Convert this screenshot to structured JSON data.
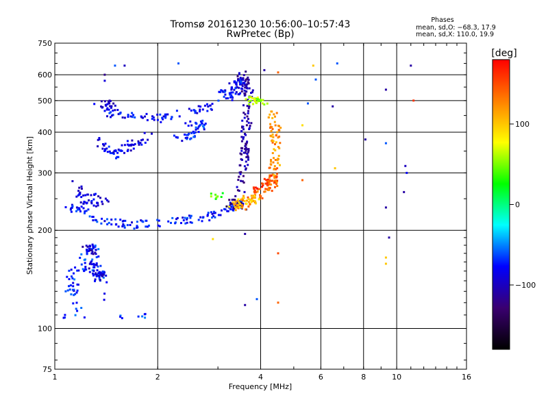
{
  "chart_data": {
    "type": "scatter",
    "title": "Tromsø 20161230 10:56:00–10:57:43",
    "subtitle": "RwPretec (Bp)",
    "xlabel": "Frequency [MHz]",
    "ylabel": "Stationary phase Virtual Height [km]",
    "x_scale": "log",
    "y_scale": "log",
    "xlim": [
      1,
      16
    ],
    "ylim": [
      75,
      750
    ],
    "x_ticks": [
      1,
      2,
      4,
      6,
      8,
      10,
      16
    ],
    "x_tick_labels": [
      "1",
      "2",
      "4",
      "6",
      "8",
      "10",
      "16"
    ],
    "x_grid": [
      1,
      2,
      4,
      6,
      8,
      10,
      16
    ],
    "y_ticks": [
      75,
      100,
      200,
      300,
      400,
      500,
      600,
      750
    ],
    "y_tick_labels": [
      "75",
      "100",
      "200",
      "300",
      "400",
      "500",
      "600",
      "750"
    ],
    "grid": true,
    "phase_stats": {
      "title": "Phases",
      "o_line": "mean, sd,O: −68.3, 17.9",
      "x_line": "mean, sd,X: 110.0, 19.9"
    },
    "colorbar": {
      "label": "[deg]",
      "range": [
        -180,
        180
      ],
      "ticks": [
        100,
        0,
        -100
      ],
      "tick_labels": [
        "100",
        "0",
        "−100"
      ],
      "colormap": [
        "#000000",
        "#3a0070",
        "#0000ff",
        "#00ffff",
        "#00ff00",
        "#ffff00",
        "#ff8000",
        "#ff0000"
      ]
    },
    "clusters": [
      {
        "phase": -70,
        "n": 110,
        "points": [
          [
            1.02,
            110
          ],
          [
            1.2,
            110
          ],
          [
            1.08,
            130
          ],
          [
            1.16,
            130
          ],
          [
            1.1,
            150
          ],
          [
            1.2,
            150
          ],
          [
            1.22,
            170
          ],
          [
            1.3,
            180
          ],
          [
            1.35,
            150
          ],
          [
            1.4,
            140
          ],
          [
            1.28,
            160
          ],
          [
            1.5,
            110
          ],
          [
            1.9,
            110
          ]
        ]
      },
      {
        "phase": -95,
        "n": 40,
        "points": [
          [
            1.25,
            160
          ],
          [
            1.3,
            150
          ],
          [
            1.35,
            140
          ],
          [
            1.4,
            145
          ],
          [
            1.22,
            180
          ],
          [
            1.3,
            170
          ]
        ]
      },
      {
        "phase": -75,
        "n": 140,
        "points": [
          [
            1.1,
            230
          ],
          [
            1.2,
            235
          ],
          [
            1.3,
            215
          ],
          [
            1.5,
            210
          ],
          [
            1.7,
            208
          ],
          [
            2.0,
            210
          ],
          [
            2.4,
            215
          ],
          [
            2.8,
            220
          ],
          [
            3.1,
            228
          ],
          [
            3.3,
            235
          ],
          [
            3.5,
            240
          ]
        ]
      },
      {
        "phase": -90,
        "n": 45,
        "points": [
          [
            1.15,
            280
          ],
          [
            1.2,
            250
          ],
          [
            1.3,
            240
          ],
          [
            1.4,
            245
          ],
          [
            1.25,
            265
          ]
        ]
      },
      {
        "phase": -85,
        "n": 60,
        "points": [
          [
            1.3,
            380
          ],
          [
            1.4,
            360
          ],
          [
            1.5,
            340
          ],
          [
            1.6,
            355
          ],
          [
            1.7,
            370
          ],
          [
            1.9,
            390
          ]
        ]
      },
      {
        "phase": -80,
        "n": 70,
        "points": [
          [
            1.4,
            460
          ],
          [
            1.6,
            450
          ],
          [
            1.8,
            445
          ],
          [
            2.0,
            440
          ],
          [
            2.3,
            450
          ],
          [
            2.6,
            470
          ],
          [
            2.9,
            480
          ]
        ]
      },
      {
        "phase": -95,
        "n": 25,
        "points": [
          [
            1.3,
            500
          ],
          [
            1.4,
            490
          ],
          [
            1.5,
            475
          ]
        ]
      },
      {
        "phase": -75,
        "n": 45,
        "points": [
          [
            2.2,
            375
          ],
          [
            2.5,
            395
          ],
          [
            2.7,
            420
          ],
          [
            2.45,
            430
          ]
        ]
      },
      {
        "phase": -110,
        "n": 130,
        "points": [
          [
            3.5,
            260
          ],
          [
            3.55,
            300
          ],
          [
            3.6,
            340
          ],
          [
            3.6,
            380
          ],
          [
            3.65,
            420
          ],
          [
            3.65,
            470
          ],
          [
            3.7,
            520
          ],
          [
            3.6,
            560
          ],
          [
            3.5,
            600
          ]
        ]
      },
      {
        "phase": -80,
        "n": 60,
        "points": [
          [
            3.0,
            510
          ],
          [
            3.2,
            530
          ],
          [
            3.4,
            560
          ],
          [
            3.5,
            580
          ],
          [
            3.3,
            500
          ]
        ]
      },
      {
        "phase": -130,
        "n": 22,
        "points": [
          [
            3.2,
            240
          ],
          [
            3.4,
            250
          ],
          [
            3.55,
            235
          ],
          [
            3.0,
            228
          ]
        ]
      },
      {
        "phase": 60,
        "n": 30,
        "points": [
          [
            3.7,
            500
          ],
          [
            3.9,
            500
          ],
          [
            4.1,
            495
          ],
          [
            4.0,
            510
          ]
        ]
      },
      {
        "phase": 130,
        "n": 80,
        "points": [
          [
            3.4,
            235
          ],
          [
            3.6,
            240
          ],
          [
            3.8,
            248
          ],
          [
            4.0,
            258
          ],
          [
            4.2,
            270
          ],
          [
            4.35,
            300
          ],
          [
            4.4,
            340
          ],
          [
            4.45,
            380
          ],
          [
            4.45,
            420
          ]
        ]
      },
      {
        "phase": 155,
        "n": 45,
        "points": [
          [
            3.8,
            260
          ],
          [
            4.0,
            270
          ],
          [
            4.2,
            280
          ],
          [
            4.35,
            290
          ],
          [
            4.3,
            265
          ]
        ]
      },
      {
        "phase": 100,
        "n": 35,
        "points": [
          [
            3.3,
            240
          ],
          [
            3.5,
            245
          ],
          [
            3.7,
            250
          ],
          [
            3.9,
            248
          ],
          [
            3.4,
            238
          ]
        ]
      },
      {
        "phase": 120,
        "n": 40,
        "points": [
          [
            4.3,
            260
          ],
          [
            4.4,
            300
          ],
          [
            4.45,
            340
          ],
          [
            4.4,
            400
          ],
          [
            4.35,
            460
          ]
        ]
      },
      {
        "phase": 40,
        "n": 8,
        "points": [
          [
            2.8,
            255
          ],
          [
            3.1,
            248
          ],
          [
            2.9,
            262
          ]
        ]
      }
    ],
    "scatter_points": [
      {
        "x": 1.6,
        "y": 640,
        "phase": -100
      },
      {
        "x": 2.3,
        "y": 650,
        "phase": -60
      },
      {
        "x": 4.1,
        "y": 620,
        "phase": -110
      },
      {
        "x": 4.5,
        "y": 610,
        "phase": 140
      },
      {
        "x": 5.7,
        "y": 640,
        "phase": 100
      },
      {
        "x": 5.8,
        "y": 580,
        "phase": -60
      },
      {
        "x": 6.7,
        "y": 650,
        "phase": -60
      },
      {
        "x": 5.5,
        "y": 490,
        "phase": -60
      },
      {
        "x": 5.3,
        "y": 420,
        "phase": 90
      },
      {
        "x": 6.5,
        "y": 480,
        "phase": -110
      },
      {
        "x": 6.6,
        "y": 310,
        "phase": 100
      },
      {
        "x": 5.3,
        "y": 285,
        "phase": 140
      },
      {
        "x": 8.1,
        "y": 380,
        "phase": -110
      },
      {
        "x": 9.3,
        "y": 540,
        "phase": -110
      },
      {
        "x": 9.3,
        "y": 370,
        "phase": -60
      },
      {
        "x": 9.3,
        "y": 235,
        "phase": -110
      },
      {
        "x": 9.5,
        "y": 190,
        "phase": -110
      },
      {
        "x": 9.3,
        "y": 165,
        "phase": 100
      },
      {
        "x": 9.3,
        "y": 158,
        "phase": 100
      },
      {
        "x": 10.6,
        "y": 315,
        "phase": -100
      },
      {
        "x": 10.7,
        "y": 300,
        "phase": -80
      },
      {
        "x": 10.5,
        "y": 262,
        "phase": -110
      },
      {
        "x": 11.0,
        "y": 640,
        "phase": -110
      },
      {
        "x": 11.2,
        "y": 500,
        "phase": 160
      },
      {
        "x": 4.5,
        "y": 170,
        "phase": 150
      },
      {
        "x": 4.5,
        "y": 120,
        "phase": 140
      },
      {
        "x": 3.6,
        "y": 118,
        "phase": -110
      },
      {
        "x": 3.9,
        "y": 123,
        "phase": -60
      },
      {
        "x": 2.9,
        "y": 188,
        "phase": 90
      },
      {
        "x": 3.6,
        "y": 195,
        "phase": -110
      },
      {
        "x": 1.5,
        "y": 640,
        "phase": -60
      },
      {
        "x": 1.4,
        "y": 600,
        "phase": -120
      },
      {
        "x": 1.4,
        "y": 575,
        "phase": -90
      }
    ]
  }
}
